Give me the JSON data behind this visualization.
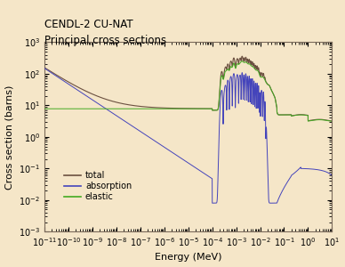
{
  "title_line1": "CENDL-2 CU-NAT",
  "title_line2": "Principal cross sections",
  "xlabel": "Energy (MeV)",
  "ylabel": "Cross section (barns)",
  "xlim_log": [
    -11,
    1
  ],
  "ylim_log": [
    -3,
    3
  ],
  "background_color": "#f5e6c8",
  "axes_bg_color": "#f5e6c8",
  "total_color": "#6b5040",
  "absorption_color": "#4444bb",
  "elastic_color": "#44aa22",
  "legend_labels": [
    "total",
    "absorption",
    "elastic"
  ]
}
